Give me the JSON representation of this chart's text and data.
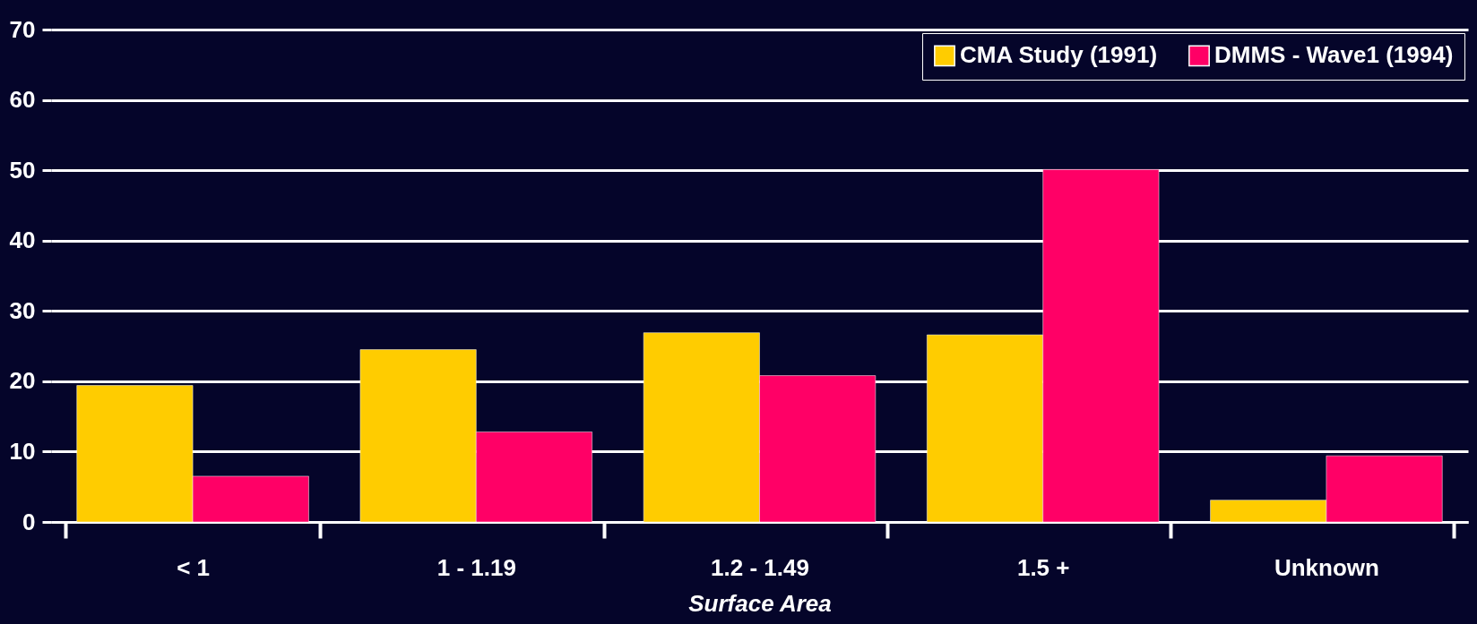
{
  "chart_data": {
    "type": "bar",
    "xlabel": "Surface Area",
    "categories": [
      "< 1",
      "1 - 1.19",
      "1.2 - 1.49",
      "1.5 +",
      "Unknown"
    ],
    "series": [
      {
        "name": "CMA Study (1991)",
        "color": "#ffcc00",
        "values": [
          19.4,
          24.5,
          26.9,
          26.6,
          3.1
        ]
      },
      {
        "name": "DMMS - Wave1 (1994)",
        "color": "#ff0066",
        "values": [
          6.5,
          12.8,
          20.8,
          50.1,
          9.4
        ]
      }
    ],
    "ylim": [
      0,
      70
    ],
    "yticks": [
      0,
      10,
      20,
      30,
      40,
      50,
      60,
      70
    ],
    "grid": "y",
    "legend": "top right"
  }
}
